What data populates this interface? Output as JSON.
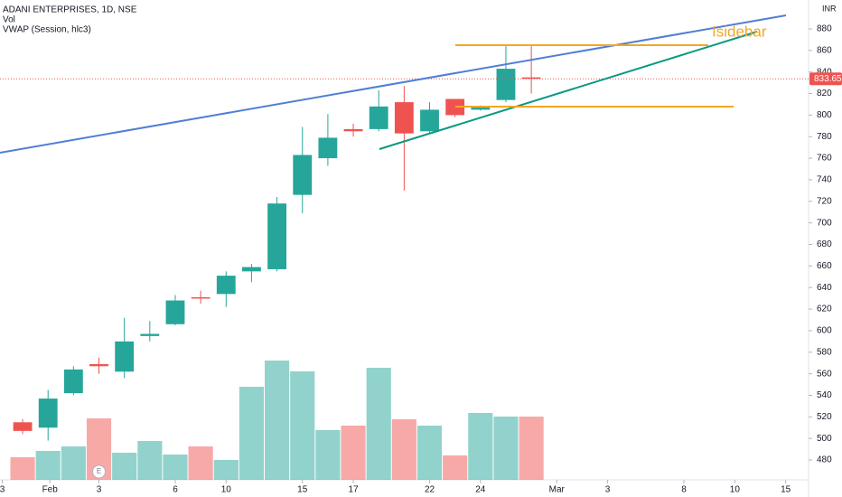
{
  "chart_data": {
    "type": "candlestick",
    "title": "ADANI ENTERPRISES, 1D, NSE",
    "indicators": [
      "Vol",
      "VWAP (Session, hlc3)"
    ],
    "currency": "INR",
    "watermark": "Isidebar",
    "earnings_marker": "E",
    "x": [
      0,
      1,
      2,
      3,
      4,
      5,
      6,
      7,
      8,
      9,
      10,
      11,
      12,
      13,
      14,
      15,
      16,
      17,
      18,
      19,
      20
    ],
    "open": [
      515,
      510,
      542,
      569,
      562,
      595,
      606,
      631,
      634,
      655,
      657,
      726,
      760,
      787,
      787,
      812,
      785,
      815,
      805,
      814,
      835
    ],
    "high": [
      518,
      545,
      567,
      575,
      612,
      609,
      633,
      637,
      655,
      662,
      724,
      789,
      801,
      792,
      823,
      827,
      812,
      815,
      809,
      864,
      864
    ],
    "low": [
      504,
      498,
      540,
      560,
      556,
      590,
      605,
      625,
      622,
      645,
      655,
      709,
      753,
      780,
      785,
      730,
      783,
      798,
      804,
      812,
      820
    ],
    "close": [
      507,
      537,
      564,
      567,
      590,
      597,
      628,
      630,
      651,
      659,
      718,
      763,
      779,
      785,
      808,
      783,
      805,
      800,
      807,
      843,
      833.65
    ],
    "volume": [
      25,
      32,
      37,
      68,
      30,
      43,
      28,
      37,
      22,
      103,
      132,
      120,
      55,
      60,
      124,
      67,
      60,
      27,
      74,
      70,
      70
    ],
    "up_color": "#26a69a",
    "down_color": "#ef5350",
    "volume_ylim": [
      0,
      200
    ],
    "ylim": [
      461.6,
      906.8
    ],
    "yticks": [
      480,
      500,
      520,
      540,
      560,
      580,
      600,
      620,
      640,
      660,
      680,
      700,
      720,
      740,
      760,
      780,
      800,
      820,
      840,
      860,
      880
    ],
    "xlim": [
      -0.89,
      30.9
    ],
    "xticks": [
      {
        "value": -0.8,
        "label": "3"
      },
      {
        "value": 1.07,
        "label": "Feb"
      },
      {
        "value": 3,
        "label": "3"
      },
      {
        "value": 6,
        "label": "6"
      },
      {
        "value": 8,
        "label": "10"
      },
      {
        "value": 11,
        "label": "15"
      },
      {
        "value": 13,
        "label": "17"
      },
      {
        "value": 16,
        "label": "22"
      },
      {
        "value": 18,
        "label": "24"
      },
      {
        "value": 21,
        "label": "Mar"
      },
      {
        "value": 23,
        "label": "3"
      },
      {
        "value": 26,
        "label": "8"
      },
      {
        "value": 28,
        "label": "10"
      },
      {
        "value": 30,
        "label": "15"
      }
    ],
    "grid": false
  }
}
